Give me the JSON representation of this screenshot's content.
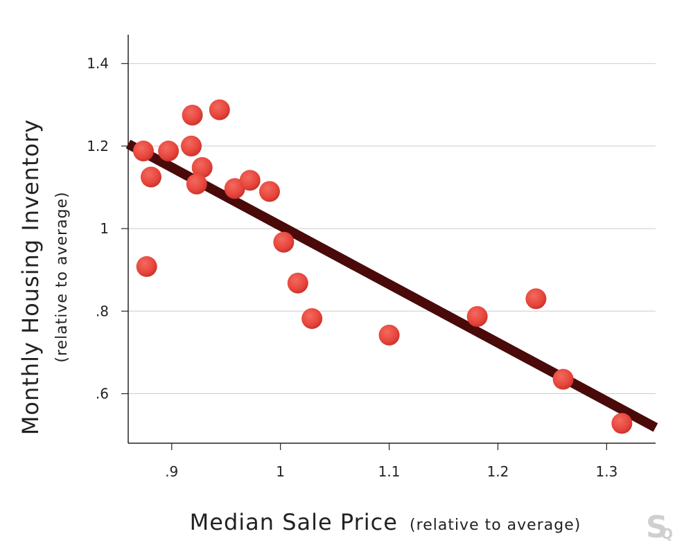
{
  "chart_data": {
    "type": "scatter",
    "xlabel": "Median Sale Price",
    "xlabel_note": "(relative to average)",
    "ylabel": "Monthly Housing Inventory",
    "ylabel_note": "(relative to average)",
    "xlim": [
      0.86,
      1.345
    ],
    "ylim": [
      0.48,
      1.47
    ],
    "x_ticks": [
      {
        "value": 0.9,
        "label": ".9"
      },
      {
        "value": 1.0,
        "label": "1"
      },
      {
        "value": 1.1,
        "label": "1.1"
      },
      {
        "value": 1.2,
        "label": "1.2"
      },
      {
        "value": 1.3,
        "label": "1.3"
      }
    ],
    "y_ticks": [
      {
        "value": 0.6,
        "label": ".6"
      },
      {
        "value": 0.8,
        "label": ".8"
      },
      {
        "value": 1.0,
        "label": "1"
      },
      {
        "value": 1.2,
        "label": "1.2"
      },
      {
        "value": 1.4,
        "label": "1.4"
      }
    ],
    "grid": "horizontal",
    "points": [
      {
        "x": 0.874,
        "y": 1.188
      },
      {
        "x": 0.881,
        "y": 1.125
      },
      {
        "x": 0.877,
        "y": 0.908
      },
      {
        "x": 0.897,
        "y": 1.188
      },
      {
        "x": 0.919,
        "y": 1.275
      },
      {
        "x": 0.918,
        "y": 1.2
      },
      {
        "x": 0.928,
        "y": 1.148
      },
      {
        "x": 0.923,
        "y": 1.108
      },
      {
        "x": 0.944,
        "y": 1.288
      },
      {
        "x": 0.958,
        "y": 1.097
      },
      {
        "x": 0.972,
        "y": 1.117
      },
      {
        "x": 0.99,
        "y": 1.09
      },
      {
        "x": 1.003,
        "y": 0.967
      },
      {
        "x": 1.016,
        "y": 0.868
      },
      {
        "x": 1.029,
        "y": 0.782
      },
      {
        "x": 1.1,
        "y": 0.742
      },
      {
        "x": 1.181,
        "y": 0.787
      },
      {
        "x": 1.235,
        "y": 0.83
      },
      {
        "x": 1.26,
        "y": 0.635
      },
      {
        "x": 1.314,
        "y": 0.528
      }
    ],
    "trendline": {
      "x": [
        0.86,
        1.345
      ],
      "y": [
        1.205,
        0.518
      ]
    },
    "colors": {
      "points": "#e8453c",
      "trendline": "#4a0a0a",
      "grid": "#cccccc",
      "axis": "#222222"
    }
  },
  "logo": {
    "letter_big": "S",
    "letter_small": "Q"
  }
}
